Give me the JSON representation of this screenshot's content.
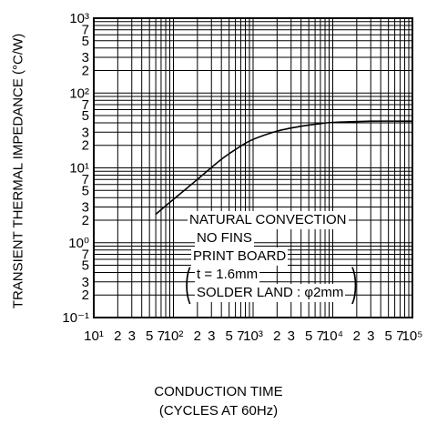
{
  "chart_data": {
    "type": "line",
    "xscale": "log",
    "yscale": "log",
    "xlim": [
      10,
      100000
    ],
    "ylim": [
      0.1,
      1000
    ],
    "grid": true,
    "xlabel_line1": "CONDUCTION TIME",
    "xlabel_line2": "(CYCLES AT 60Hz)",
    "ylabel": "TRANSIENT THERMAL IMPEDANCE  (°C/W)",
    "x_ticks": [
      "10¹",
      "2",
      "3",
      "5",
      "7",
      "10²",
      "2",
      "3",
      "5",
      "7",
      "10³",
      "2",
      "3",
      "5",
      "7",
      "10⁴",
      "2",
      "3",
      "5",
      "7",
      "10⁵"
    ],
    "y_ticks": [
      "10⁻¹",
      "2",
      "3",
      "5",
      "7",
      "10⁰",
      "2",
      "3",
      "5",
      "7",
      "10¹",
      "2",
      "3",
      "5",
      "7",
      "10²",
      "2",
      "3",
      "5",
      "7",
      "10³"
    ],
    "series": [
      {
        "x": [
          60,
          100,
          200,
          400,
          700,
          1000,
          2000,
          4000,
          7000,
          10000,
          30000,
          100000
        ],
        "y": [
          2.4,
          3.8,
          7.0,
          13.0,
          19.5,
          24.0,
          31.0,
          36.0,
          39.0,
          40.5,
          42.0,
          42.0
        ]
      }
    ],
    "annotation": {
      "line1": "NATURAL CONVECTION",
      "line2": "NO FINS",
      "line3": "PRINT BOARD",
      "line4": "t = 1.6mm",
      "line5": "SOLDER LAND : φ2mm"
    }
  }
}
